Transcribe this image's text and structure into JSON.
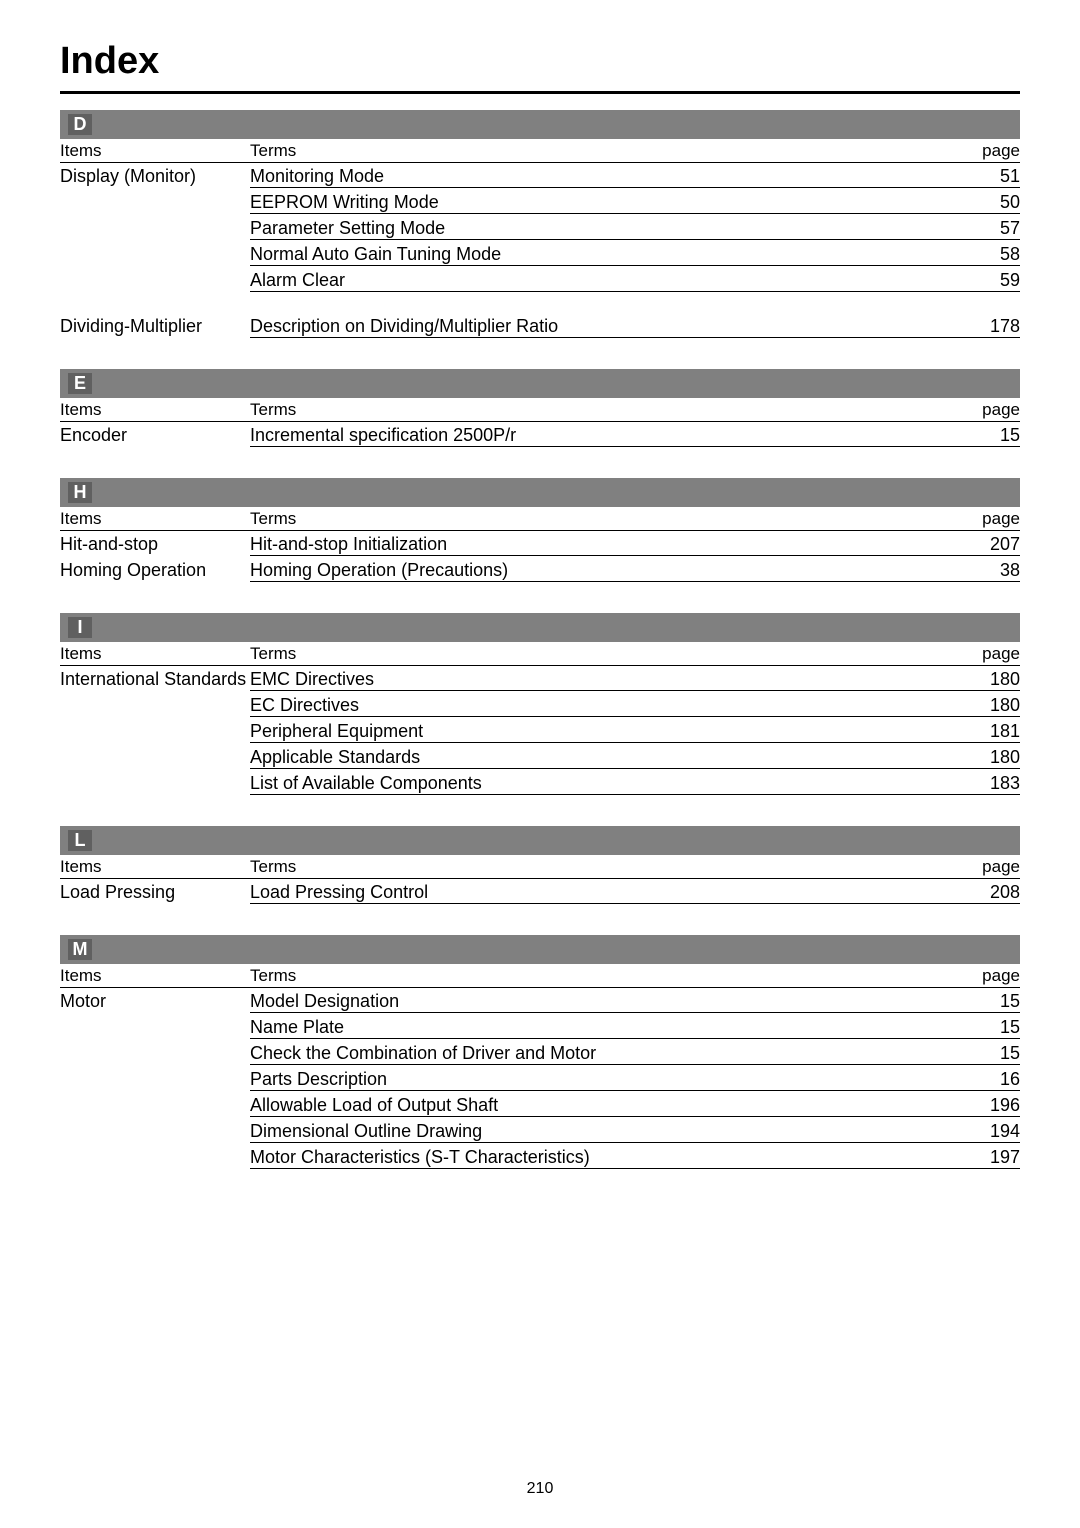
{
  "title": "Index",
  "page_number": "210",
  "headers": {
    "items": "Items",
    "terms": "Terms",
    "page": "page"
  },
  "sections": [
    {
      "letter": "D",
      "groups": [
        {
          "item": "Display (Monitor)",
          "rows": [
            {
              "term": "Monitoring Mode",
              "page": "51"
            },
            {
              "term": "EEPROM Writing Mode",
              "page": "50"
            },
            {
              "term": "Parameter Setting Mode",
              "page": "57"
            },
            {
              "term": "Normal Auto Gain Tuning Mode",
              "page": "58"
            },
            {
              "term": "Alarm Clear",
              "page": "59"
            }
          ]
        },
        {
          "item": "Dividing-Multiplier",
          "rows": [
            {
              "term": "Description on Dividing/Multiplier Ratio",
              "page": "178"
            }
          ]
        }
      ]
    },
    {
      "letter": "E",
      "groups": [
        {
          "item": "Encoder",
          "rows": [
            {
              "term": "Incremental specification 2500P/r",
              "page": "15"
            }
          ]
        }
      ]
    },
    {
      "letter": "H",
      "groups": [
        {
          "item": "Hit-and-stop",
          "rows": [
            {
              "term": "Hit-and-stop Initialization",
              "page": "207"
            }
          ]
        },
        {
          "item": "Homing Operation",
          "rows": [
            {
              "term": "Homing Operation (Precautions)",
              "page": "38"
            }
          ],
          "no_gap_before": true
        }
      ]
    },
    {
      "letter": "I",
      "groups": [
        {
          "item": "International Standards",
          "rows": [
            {
              "term": "EMC Directives",
              "page": "180"
            },
            {
              "term": "EC Directives",
              "page": "180"
            },
            {
              "term": "Peripheral Equipment",
              "page": "181"
            },
            {
              "term": "Applicable Standards",
              "page": "180"
            },
            {
              "term": "List of Available Components",
              "page": "183"
            }
          ]
        }
      ]
    },
    {
      "letter": "L",
      "groups": [
        {
          "item": "Load Pressing",
          "rows": [
            {
              "term": "Load Pressing Control",
              "page": "208"
            }
          ]
        }
      ]
    },
    {
      "letter": "M",
      "groups": [
        {
          "item": "Motor",
          "rows": [
            {
              "term": "Model Designation",
              "page": "15"
            },
            {
              "term": "Name Plate",
              "page": "15"
            },
            {
              "term": "Check the Combination of Driver and Motor",
              "page": "15"
            },
            {
              "term": "Parts Description",
              "page": "16"
            },
            {
              "term": "Allowable Load of Output Shaft",
              "page": "196"
            },
            {
              "term": "Dimensional Outline Drawing",
              "page": "194"
            },
            {
              "term": "Motor Characteristics (S-T Characteristics)",
              "page": "197"
            }
          ]
        }
      ]
    }
  ]
}
